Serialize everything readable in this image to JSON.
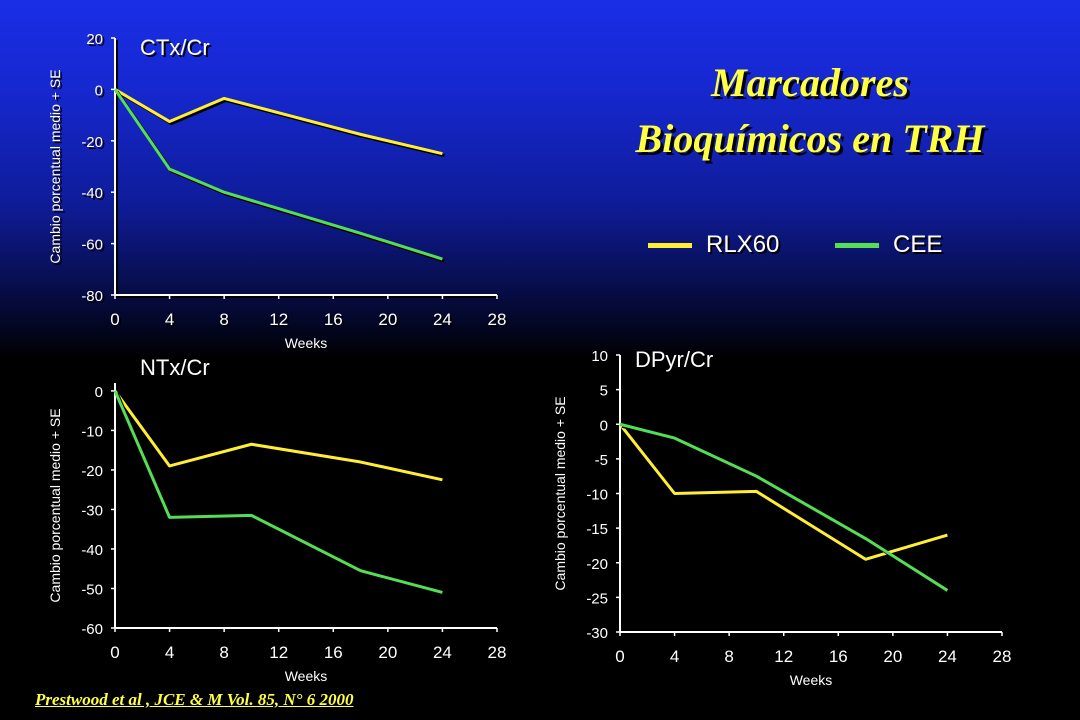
{
  "title_line1": "Marcadores",
  "title_line2": "Bioquímicos en TRH",
  "citation": "Prestwood et al , JCE & M Vol. 85, N° 6  2000",
  "legend": [
    {
      "name": "RLX60",
      "color": "#ffee33"
    },
    {
      "name": "CEE",
      "color": "#55dd55"
    }
  ],
  "chart_data": [
    {
      "type": "line",
      "title": "CTx/Cr",
      "xlabel": "Weeks",
      "ylabel": "Cambio porcentual medio + SE",
      "xticks": [
        0,
        4,
        8,
        12,
        16,
        20,
        24,
        28
      ],
      "yticks": [
        20,
        0,
        -20,
        -40,
        -60,
        -80
      ],
      "xlim": [
        0,
        28
      ],
      "ylim": [
        -80,
        20
      ],
      "series": [
        {
          "name": "RLX60",
          "x": [
            0,
            4,
            8,
            18,
            24
          ],
          "y": [
            0,
            -12.5,
            -3.5,
            -17.5,
            -25
          ]
        },
        {
          "name": "CEE",
          "x": [
            0,
            4,
            8,
            18,
            24
          ],
          "y": [
            0,
            -31,
            -40,
            -56,
            -66
          ]
        }
      ]
    },
    {
      "type": "line",
      "title": "NTx/Cr",
      "xlabel": "Weeks",
      "ylabel": "Cambio porcentual medio + SE",
      "xticks": [
        0,
        4,
        8,
        12,
        16,
        20,
        24,
        28
      ],
      "yticks": [
        0,
        -10,
        -20,
        -30,
        -40,
        -50,
        -60
      ],
      "xlim": [
        0,
        28
      ],
      "ylim": [
        -60,
        2
      ],
      "series": [
        {
          "name": "RLX60",
          "x": [
            0,
            4,
            10,
            18,
            24
          ],
          "y": [
            0,
            -19,
            -13.5,
            -18,
            -22.5
          ]
        },
        {
          "name": "CEE",
          "x": [
            0,
            4,
            10,
            18,
            24
          ],
          "y": [
            0,
            -32,
            -31.5,
            -45.5,
            -51
          ]
        }
      ]
    },
    {
      "type": "line",
      "title": "DPyr/Cr",
      "xlabel": "Weeks",
      "ylabel": "Cambio porcentual medio + SE",
      "xticks": [
        0,
        4,
        8,
        12,
        16,
        20,
        24,
        28
      ],
      "yticks": [
        10,
        5,
        0,
        -5,
        -10,
        -15,
        -20,
        -25,
        -30
      ],
      "xlim": [
        0,
        28
      ],
      "ylim": [
        -30,
        10
      ],
      "series": [
        {
          "name": "RLX60",
          "x": [
            0,
            4,
            10,
            18,
            24
          ],
          "y": [
            0,
            -10,
            -9.7,
            -19.5,
            -16
          ]
        },
        {
          "name": "CEE",
          "x": [
            0,
            4,
            10,
            18,
            24
          ],
          "y": [
            0,
            -2,
            -7.5,
            -16.5,
            -24
          ]
        }
      ]
    }
  ]
}
